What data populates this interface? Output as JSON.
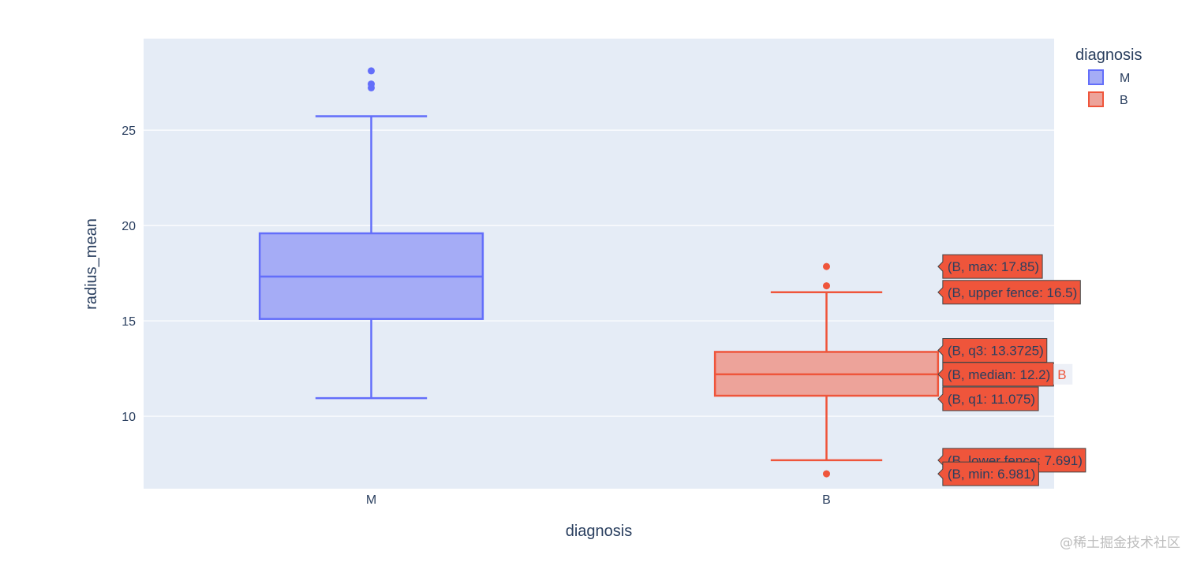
{
  "chart_data": {
    "type": "box",
    "xlabel": "diagnosis",
    "ylabel": "radius_mean",
    "categories": [
      "M",
      "B"
    ],
    "ylim": [
      6.2,
      29.8
    ],
    "yticks": [
      10,
      15,
      20,
      25
    ],
    "grid": true,
    "legend": {
      "title": "diagnosis",
      "position": "top-right"
    },
    "series": [
      {
        "name": "M",
        "category": "M",
        "color": "#636efa",
        "fill": "#a5acf6",
        "min": 10.95,
        "lower_fence": 10.95,
        "q1": 15.1,
        "median": 17.325,
        "q3": 19.59,
        "upper_fence": 25.73,
        "outliers": [
          27.22,
          27.42,
          28.11
        ]
      },
      {
        "name": "B",
        "category": "B",
        "color": "#ef553b",
        "fill": "#eda39a",
        "min": 6.981,
        "lower_fence": 7.691,
        "q1": 11.075,
        "median": 12.2,
        "q3": 13.3725,
        "upper_fence": 16.5,
        "max": 17.85,
        "outliers": [
          6.981,
          16.84,
          17.85
        ]
      }
    ],
    "hover": {
      "series": "B",
      "side_label": "B",
      "labels": [
        {
          "text": "(B, max: 17.85)",
          "value": 17.85
        },
        {
          "text": "(B, upper fence: 16.5)",
          "value": 16.5
        },
        {
          "text": "(B, q3: 13.3725)",
          "value": 13.3725
        },
        {
          "text": "(B, median: 12.2)",
          "value": 12.2
        },
        {
          "text": "(B, q1: 11.075)",
          "value": 11.075
        },
        {
          "text": "(B, lower fence: 7.691)",
          "value": 7.691
        },
        {
          "text": "(B, min: 6.981)",
          "value": 6.981
        }
      ]
    }
  },
  "watermark": "@稀土掘金技术社区"
}
